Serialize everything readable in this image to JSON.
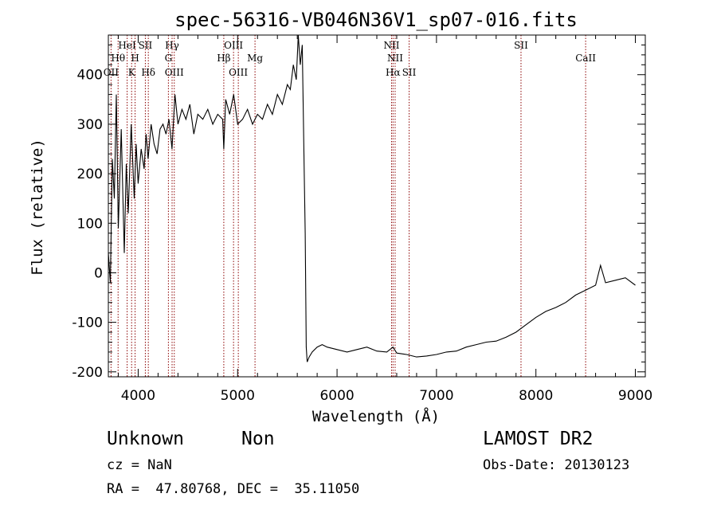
{
  "chart_data": {
    "type": "line",
    "title": "spec-56316-VB046N36V1_sp07-016.fits",
    "xlabel": "Wavelength (Å)",
    "ylabel": "Flux (relative)",
    "xlim": [
      3700,
      9100
    ],
    "ylim": [
      -210,
      480
    ],
    "xticks": [
      4000,
      5000,
      6000,
      7000,
      8000,
      9000
    ],
    "yticks": [
      -200,
      -100,
      0,
      100,
      200,
      300,
      400
    ],
    "grid": false,
    "line_color": "#000000",
    "marker_line_color": "#8b0000",
    "series": [
      {
        "x": [
          3700,
          3720,
          3740,
          3760,
          3780,
          3800,
          3830,
          3860,
          3880,
          3900,
          3930,
          3960,
          3980,
          4000,
          4030,
          4060,
          4080,
          4100,
          4130,
          4160,
          4190,
          4220,
          4250,
          4280,
          4310,
          4340,
          4370,
          4400,
          4440,
          4480,
          4520,
          4560,
          4600,
          4650,
          4700,
          4750,
          4800,
          4850,
          4861,
          4880,
          4920,
          4960,
          5000,
          5050,
          5100,
          5150,
          5200,
          5250,
          5300,
          5350,
          5400,
          5450,
          5500,
          5530,
          5560,
          5590,
          5610,
          5630,
          5650,
          5670,
          5680,
          5690,
          5700,
          5720,
          5750,
          5800,
          5850,
          5900,
          6000,
          6100,
          6200,
          6300,
          6400,
          6500,
          6563,
          6600,
          6700,
          6800,
          6900,
          7000,
          7100,
          7200,
          7300,
          7400,
          7500,
          7600,
          7700,
          7800,
          7900,
          8000,
          8100,
          8200,
          8300,
          8400,
          8500,
          8600,
          8650,
          8700,
          8800,
          8900,
          9000
        ],
        "y": [
          40,
          -20,
          230,
          150,
          360,
          90,
          290,
          40,
          220,
          120,
          300,
          150,
          260,
          180,
          250,
          210,
          280,
          230,
          300,
          260,
          240,
          290,
          300,
          280,
          310,
          250,
          360,
          300,
          330,
          310,
          340,
          280,
          320,
          310,
          330,
          300,
          320,
          310,
          250,
          350,
          320,
          360,
          300,
          310,
          330,
          300,
          320,
          310,
          340,
          320,
          360,
          340,
          380,
          370,
          420,
          390,
          480,
          420,
          460,
          200,
          80,
          -150,
          -180,
          -170,
          -160,
          -150,
          -145,
          -150,
          -155,
          -160,
          -155,
          -150,
          -158,
          -160,
          -150,
          -162,
          -165,
          -170,
          -168,
          -165,
          -160,
          -158,
          -150,
          -145,
          -140,
          -138,
          -130,
          -120,
          -105,
          -90,
          -78,
          -70,
          -60,
          -45,
          -35,
          -25,
          15,
          -20,
          -15,
          -10,
          -25
        ]
      }
    ],
    "line_markers": [
      {
        "x": 3727,
        "label": "OII",
        "row": 3
      },
      {
        "x": 3798,
        "label": "Hθ",
        "row": 2
      },
      {
        "x": 3889,
        "label": "HeI",
        "row": 1
      },
      {
        "x": 3934,
        "label": "K",
        "row": 3
      },
      {
        "x": 3969,
        "label": "H",
        "row": 2
      },
      {
        "x": 4072,
        "label": "SII",
        "row": 1
      },
      {
        "x": 4102,
        "label": "Hδ",
        "row": 3
      },
      {
        "x": 4304,
        "label": "G",
        "row": 2
      },
      {
        "x": 4341,
        "label": "Hγ",
        "row": 1
      },
      {
        "x": 4363,
        "label": "OIII",
        "row": 3
      },
      {
        "x": 4861,
        "label": "Hβ",
        "row": 2
      },
      {
        "x": 4959,
        "label": "OIII",
        "row": 1
      },
      {
        "x": 5007,
        "label": "OIII",
        "row": 3
      },
      {
        "x": 5175,
        "label": "Mg",
        "row": 2
      },
      {
        "x": 6548,
        "label": "NII",
        "row": 1
      },
      {
        "x": 6563,
        "label": "Hα",
        "row": 3
      },
      {
        "x": 6584,
        "label": "NII",
        "row": 2
      },
      {
        "x": 6725,
        "label": "SII",
        "row": 3
      },
      {
        "x": 7850,
        "label": "SII",
        "row": 1
      },
      {
        "x": 8500,
        "label": "CaII",
        "row": 2
      }
    ]
  },
  "info": {
    "class_label": "Unknown",
    "subclass_label": "Non",
    "survey": "LAMOST DR2",
    "cz": "cz = NaN",
    "obs_date": "Obs-Date: 20130123",
    "radec": "RA =  47.80768, DEC =  35.11050"
  }
}
